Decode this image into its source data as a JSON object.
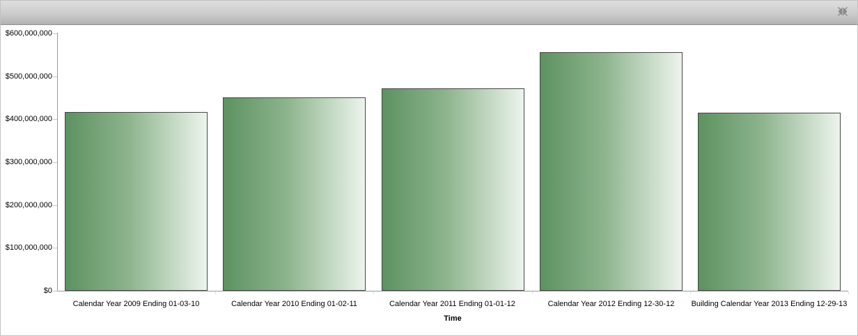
{
  "panel": {
    "header_icon": "collapse-arrows-icon",
    "header_accent_top": "#dedede",
    "header_accent_bottom": "#b2b2b2"
  },
  "chart_data": {
    "type": "bar",
    "title": "",
    "xlabel": "Time",
    "ylabel": "",
    "categories": [
      "Calendar Year 2009 Ending 01-03-10",
      "Calendar Year 2010 Ending 01-02-11",
      "Calendar Year 2011 Ending 01-01-12",
      "Calendar Year 2012 Ending 12-30-12",
      "Building Calendar Year 2013 Ending 12-29-13"
    ],
    "values": [
      416000000,
      451000000,
      472000000,
      556000000,
      415000000
    ],
    "y_ticks": [
      "$0",
      "$100,000,000",
      "$200,000,000",
      "$300,000,000",
      "$400,000,000",
      "$500,000,000",
      "$600,000,000"
    ],
    "ylim": [
      0,
      600000000
    ],
    "grid": "off",
    "legend": "none",
    "bar_gradient_start": "#5d9261",
    "bar_gradient_end": "#edf4ed",
    "bar_border_color": "#454545",
    "axis_color": "#9a9a9a"
  }
}
